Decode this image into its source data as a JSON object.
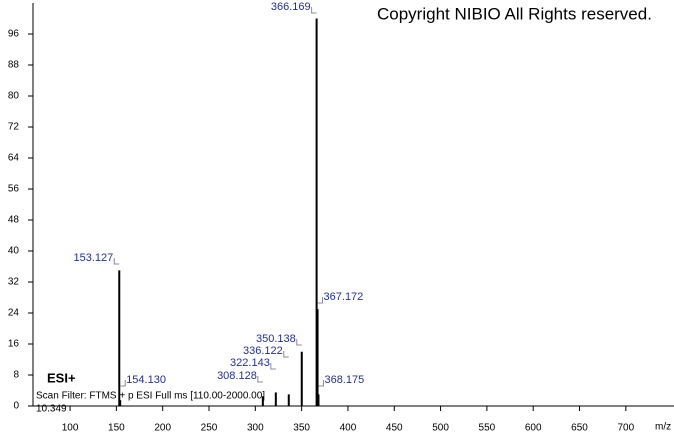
{
  "chart_data": {
    "type": "stick",
    "title": "Copyright NIBIO All Rights reserved.",
    "ionization": "ESI+",
    "scan_filter": "Scan Filter: FTMS + p ESI Full ms [110.00-2000.00]",
    "retention_time": "10.349",
    "x_label": "m/z",
    "x": [
      153.127,
      154.13,
      308.128,
      322.143,
      336.122,
      350.138,
      366.169,
      367.172,
      368.175
    ],
    "x_labels": [
      "153.127",
      "154.130",
      "308.128",
      "322.143",
      "336.122",
      "350.138",
      "366.169",
      "367.172",
      "368.175"
    ],
    "values": [
      35,
      1.5,
      2.5,
      3.5,
      3,
      14,
      100,
      25,
      3
    ],
    "color": "#000000",
    "label_color": "#1f2f9f",
    "xlim": [
      60,
      752
    ],
    "xticks": [
      100,
      150,
      200,
      250,
      300,
      350,
      400,
      450,
      500,
      550,
      600,
      650,
      700
    ],
    "ylim": [
      0,
      104
    ],
    "yticks": [
      0,
      8,
      16,
      24,
      32,
      40,
      48,
      56,
      64,
      72,
      80,
      88,
      96
    ]
  }
}
